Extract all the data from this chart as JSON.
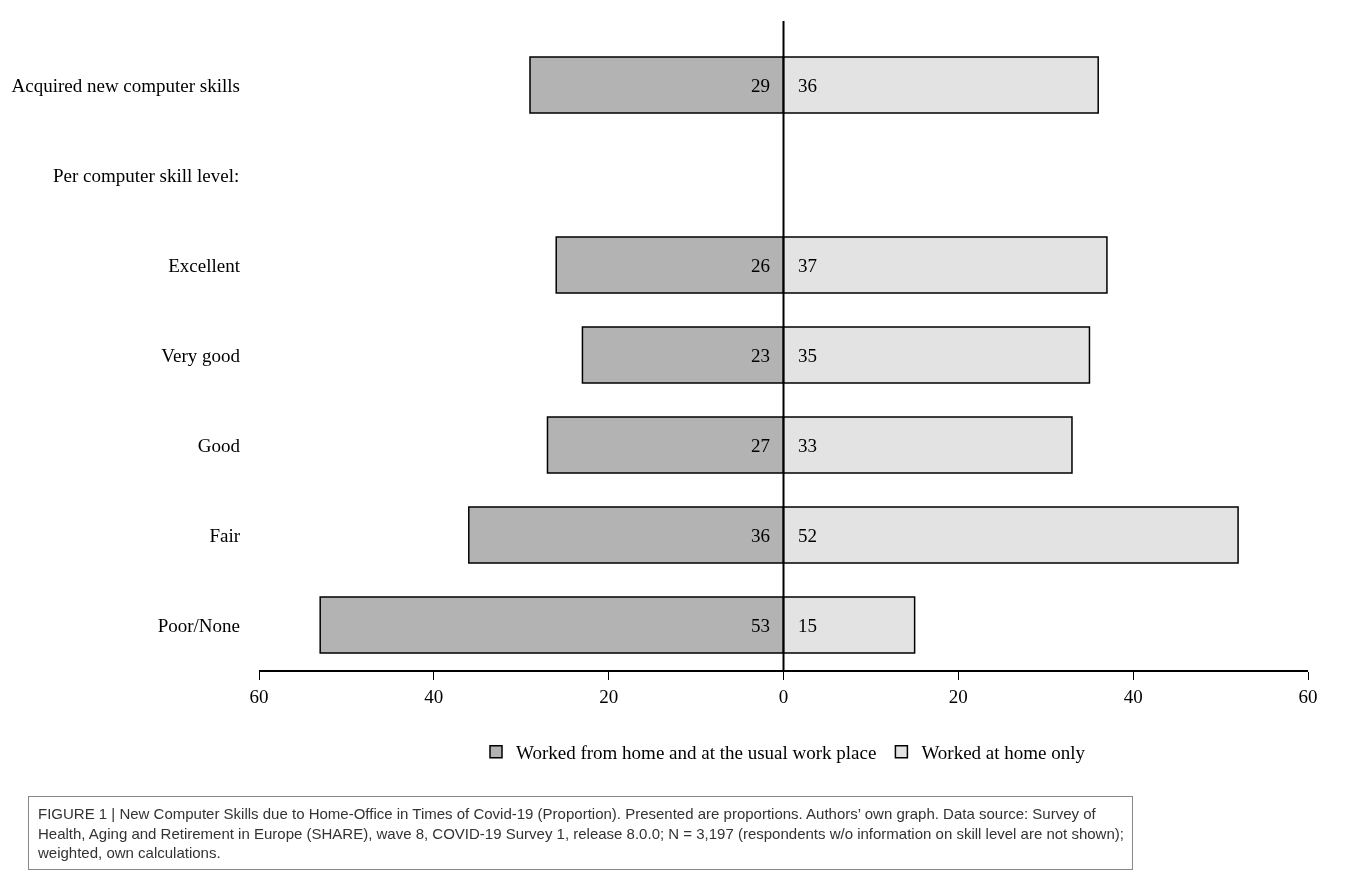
{
  "chart_data": {
    "type": "bar",
    "orientation": "horizontal",
    "categories": [
      "Acquired new computer skills",
      null,
      "Excellent",
      "Very good",
      "Good",
      "Fair",
      "Poor/None"
    ],
    "series": [
      {
        "name": "Worked from home and at the usual work place",
        "color": "#b3b3b3",
        "values": [
          29,
          null,
          26,
          23,
          27,
          36,
          53
        ],
        "base": [
          -29,
          null,
          -26,
          -23,
          -27,
          -36,
          -53
        ]
      },
      {
        "name": "Worked at home only",
        "color": "#e3e3e3",
        "values": [
          36,
          null,
          37,
          35,
          33,
          52,
          15
        ]
      }
    ],
    "data_labels": true,
    "xlim": [
      -60,
      60
    ],
    "xticks": [
      {
        "value": -60,
        "label": "60"
      },
      {
        "value": -40,
        "label": "40"
      },
      {
        "value": -20,
        "label": "20"
      },
      0,
      20,
      40,
      60
    ],
    "ref_lines": [
      {
        "axis": "x",
        "value": 0,
        "color": "#000000"
      }
    ],
    "legend": "bottom",
    "annotations": [
      "Per computer skill level:",
      "FIGURE 1 | New Computer Skills due to Home-Office in Times of Covid-19 (Proportion). Presented are proportions. Authors’ own graph. Data source: Survey of Health, Aging and Retirement in Europe (SHARE), wave 8, COVID-19 Survey 1, release 8.0.0; N = 3,197 (respondents w/o information on skill level are not shown); weighted, own calculations."
    ]
  }
}
